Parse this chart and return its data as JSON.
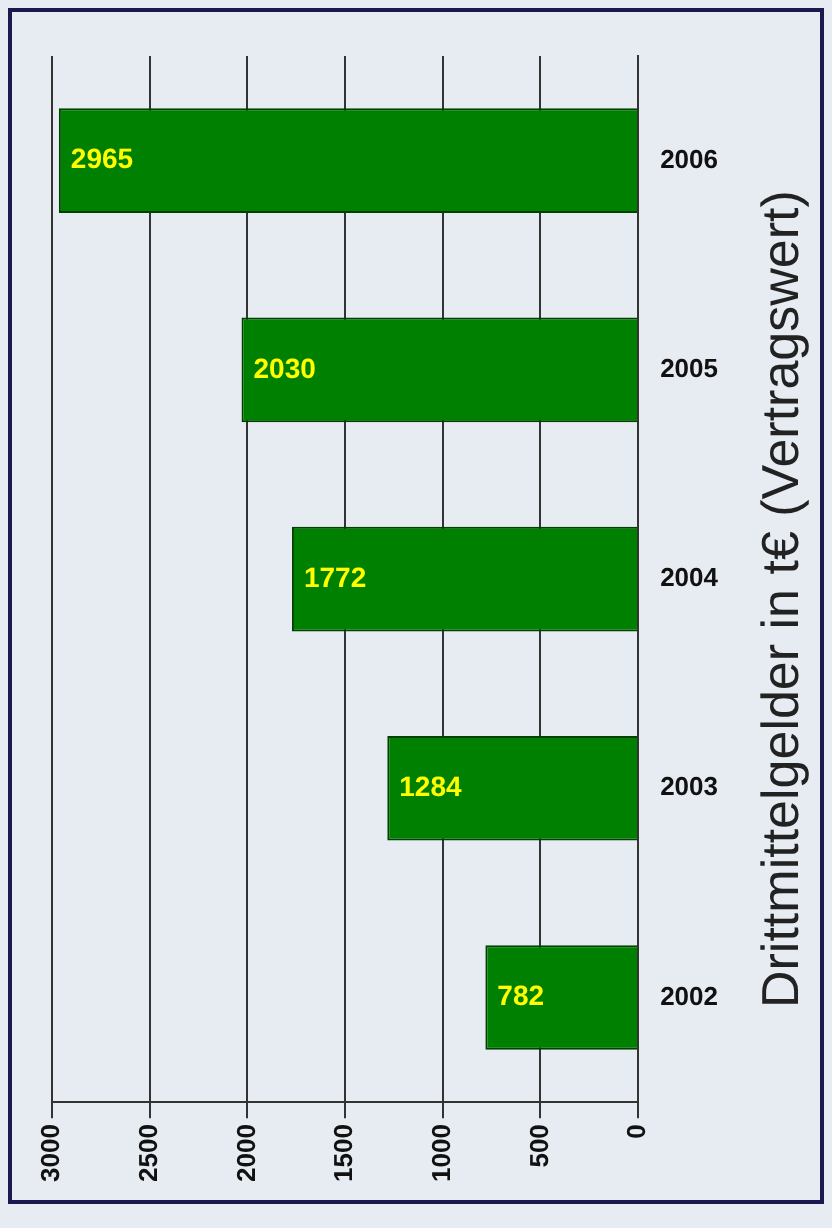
{
  "chart_data": {
    "type": "bar",
    "orientation": "horizontal",
    "title": "Drittmittelgelder in t€ (Vertragswert)",
    "categories": [
      "2006",
      "2005",
      "2004",
      "2003",
      "2002"
    ],
    "values": [
      2965,
      2030,
      1772,
      1284,
      782
    ],
    "color": "#008000",
    "xlim": [
      3000,
      0
    ],
    "xticks": [
      3000,
      2500,
      2000,
      1500,
      1000,
      500,
      0
    ],
    "grid": "x",
    "data_labels": true
  }
}
